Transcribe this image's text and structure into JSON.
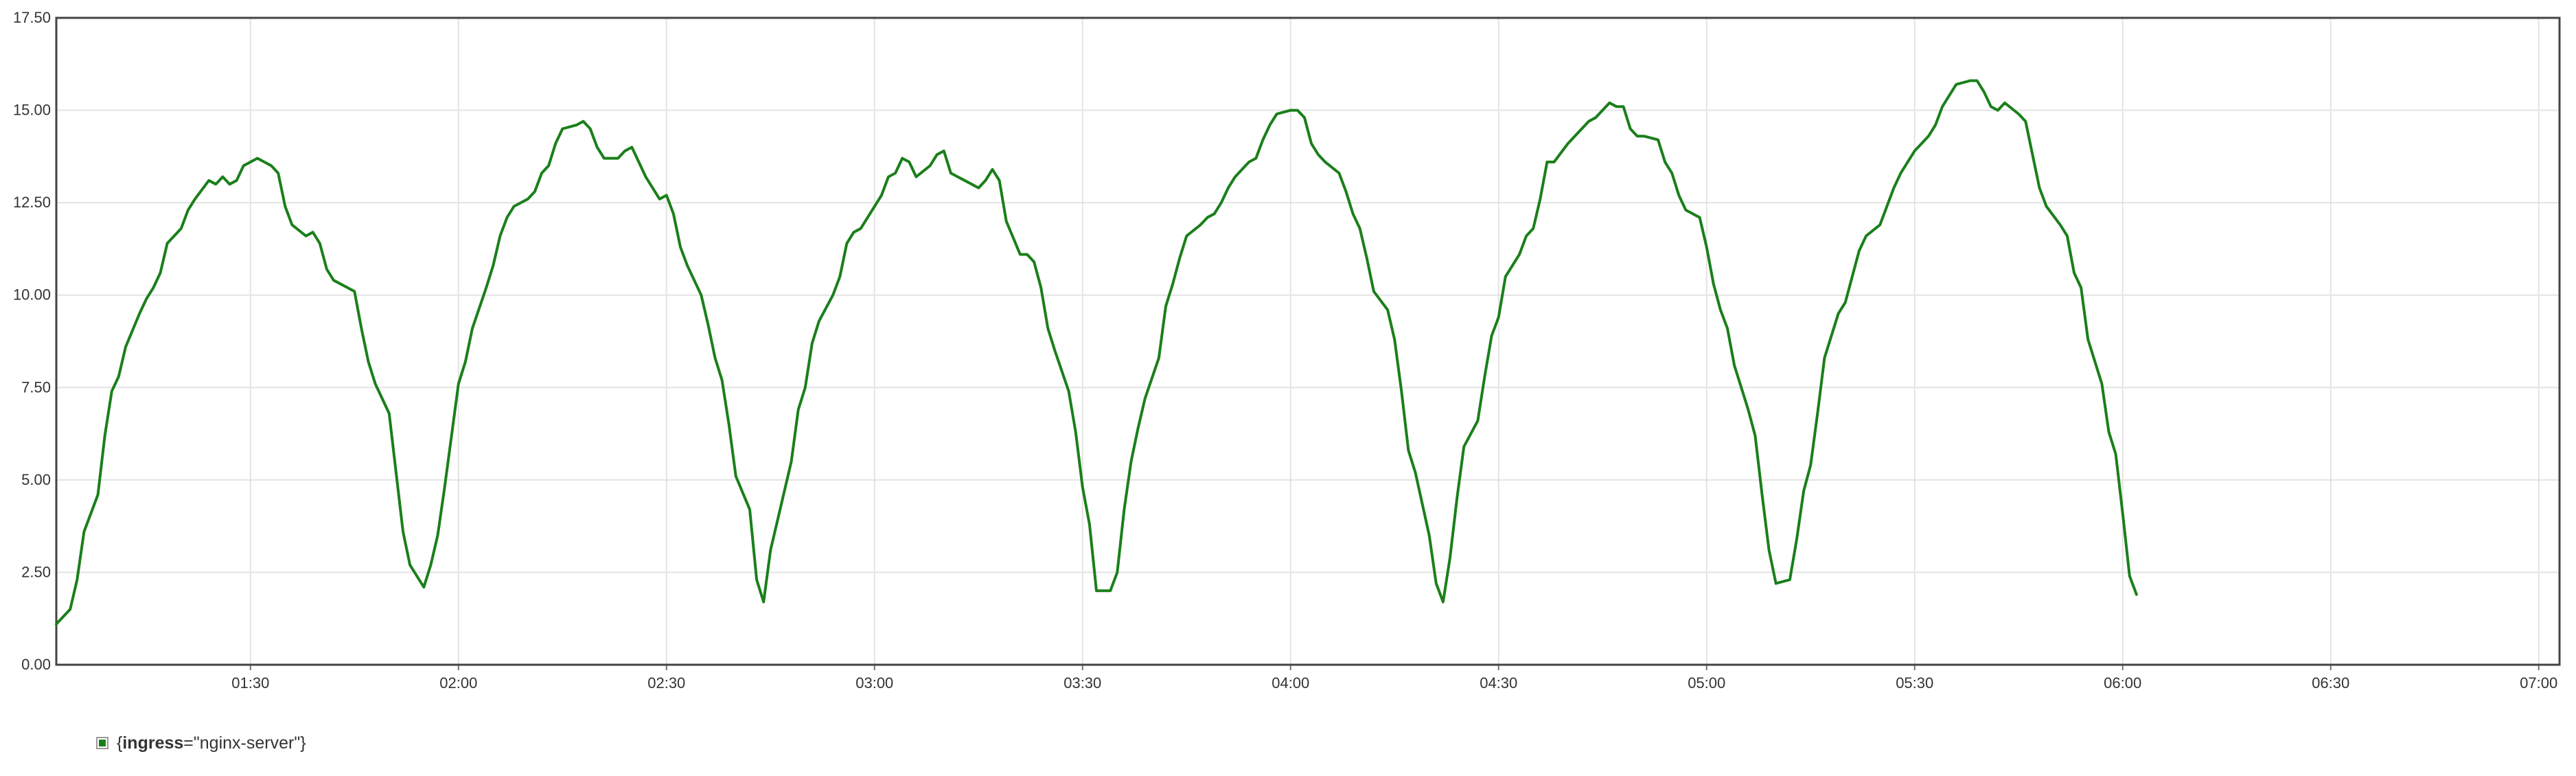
{
  "chart_data": {
    "type": "line",
    "title": "",
    "xlabel": "",
    "ylabel": "",
    "ylim": [
      0,
      17.5
    ],
    "xlim": [
      "01:02",
      "07:03"
    ],
    "grid": true,
    "legend_position": "bottom-left",
    "y_ticks": [
      "0.00",
      "2.50",
      "5.00",
      "7.50",
      "10.00",
      "12.50",
      "15.00",
      "17.50"
    ],
    "x_ticks": [
      "01:30",
      "02:00",
      "02:30",
      "03:00",
      "03:30",
      "04:00",
      "04:30",
      "05:00",
      "05:30",
      "06:00",
      "06:30",
      "07:00"
    ],
    "series": [
      {
        "name": "{ingress=\"nginx-server\"}",
        "color": "#1a7f1a",
        "points": [
          [
            "01:02",
            1.1
          ],
          [
            "01:04",
            1.5
          ],
          [
            "01:05",
            2.3
          ],
          [
            "01:06",
            3.6
          ],
          [
            "01:08",
            4.6
          ],
          [
            "01:09",
            6.2
          ],
          [
            "01:10",
            7.4
          ],
          [
            "01:11",
            7.8
          ],
          [
            "01:12",
            8.6
          ],
          [
            "01:14",
            9.5
          ],
          [
            "01:15",
            9.9
          ],
          [
            "01:16",
            10.2
          ],
          [
            "01:17",
            10.6
          ],
          [
            "01:18",
            11.4
          ],
          [
            "01:20",
            11.8
          ],
          [
            "01:21",
            12.3
          ],
          [
            "01:22",
            12.6
          ],
          [
            "01:24",
            13.1
          ],
          [
            "01:25",
            13.0
          ],
          [
            "01:26",
            13.2
          ],
          [
            "01:27",
            13.0
          ],
          [
            "01:28",
            13.1
          ],
          [
            "01:29",
            13.5
          ],
          [
            "01:31",
            13.7
          ],
          [
            "01:32",
            13.6
          ],
          [
            "01:33",
            13.5
          ],
          [
            "01:34",
            13.3
          ],
          [
            "01:35",
            12.4
          ],
          [
            "01:36",
            11.9
          ],
          [
            "01:38",
            11.6
          ],
          [
            "01:39",
            11.7
          ],
          [
            "01:40",
            11.4
          ],
          [
            "01:41",
            10.7
          ],
          [
            "01:42",
            10.4
          ],
          [
            "01:44",
            10.2
          ],
          [
            "01:45",
            10.1
          ],
          [
            "01:46",
            9.1
          ],
          [
            "01:47",
            8.2
          ],
          [
            "01:48",
            7.6
          ],
          [
            "01:50",
            6.8
          ],
          [
            "01:51",
            5.2
          ],
          [
            "01:52",
            3.6
          ],
          [
            "01:53",
            2.7
          ],
          [
            "01:55",
            2.1
          ],
          [
            "01:56",
            2.7
          ],
          [
            "01:57",
            3.5
          ],
          [
            "01:58",
            4.8
          ],
          [
            "01:59",
            6.2
          ],
          [
            "02:00",
            7.6
          ],
          [
            "02:01",
            8.2
          ],
          [
            "02:02",
            9.1
          ],
          [
            "02:04",
            10.2
          ],
          [
            "02:05",
            10.8
          ],
          [
            "02:06",
            11.6
          ],
          [
            "02:07",
            12.1
          ],
          [
            "02:08",
            12.4
          ],
          [
            "02:10",
            12.6
          ],
          [
            "02:11",
            12.8
          ],
          [
            "02:12",
            13.3
          ],
          [
            "02:13",
            13.5
          ],
          [
            "02:14",
            14.1
          ],
          [
            "02:15",
            14.5
          ],
          [
            "02:17",
            14.6
          ],
          [
            "02:18",
            14.7
          ],
          [
            "02:19",
            14.5
          ],
          [
            "02:20",
            14.0
          ],
          [
            "02:21",
            13.7
          ],
          [
            "02:23",
            13.7
          ],
          [
            "02:24",
            13.9
          ],
          [
            "02:25",
            14.0
          ],
          [
            "02:26",
            13.6
          ],
          [
            "02:27",
            13.2
          ],
          [
            "02:29",
            12.6
          ],
          [
            "02:30",
            12.7
          ],
          [
            "02:31",
            12.2
          ],
          [
            "02:32",
            11.3
          ],
          [
            "02:33",
            10.8
          ],
          [
            "02:35",
            10.0
          ],
          [
            "02:36",
            9.2
          ],
          [
            "02:37",
            8.3
          ],
          [
            "02:38",
            7.7
          ],
          [
            "02:39",
            6.5
          ],
          [
            "02:40",
            5.1
          ],
          [
            "02:42",
            4.2
          ],
          [
            "02:43",
            2.3
          ],
          [
            "02:44",
            1.7
          ],
          [
            "02:45",
            3.1
          ],
          [
            "02:46",
            3.9
          ],
          [
            "02:48",
            5.5
          ],
          [
            "02:49",
            6.9
          ],
          [
            "02:50",
            7.5
          ],
          [
            "02:51",
            8.7
          ],
          [
            "02:52",
            9.3
          ],
          [
            "02:54",
            10.0
          ],
          [
            "02:55",
            10.5
          ],
          [
            "02:56",
            11.4
          ],
          [
            "02:57",
            11.7
          ],
          [
            "02:58",
            11.8
          ],
          [
            "02:59",
            12.1
          ],
          [
            "03:01",
            12.7
          ],
          [
            "03:02",
            13.2
          ],
          [
            "03:03",
            13.3
          ],
          [
            "03:04",
            13.7
          ],
          [
            "03:05",
            13.6
          ],
          [
            "03:06",
            13.2
          ],
          [
            "03:08",
            13.5
          ],
          [
            "03:09",
            13.8
          ],
          [
            "03:10",
            13.9
          ],
          [
            "03:11",
            13.3
          ],
          [
            "03:12",
            13.2
          ],
          [
            "03:14",
            13.0
          ],
          [
            "03:15",
            12.9
          ],
          [
            "03:16",
            13.1
          ],
          [
            "03:17",
            13.4
          ],
          [
            "03:18",
            13.1
          ],
          [
            "03:19",
            12.0
          ],
          [
            "03:21",
            11.1
          ],
          [
            "03:22",
            11.1
          ],
          [
            "03:23",
            10.9
          ],
          [
            "03:24",
            10.2
          ],
          [
            "03:25",
            9.1
          ],
          [
            "03:26",
            8.5
          ],
          [
            "03:28",
            7.4
          ],
          [
            "03:29",
            6.3
          ],
          [
            "03:30",
            4.8
          ],
          [
            "03:31",
            3.8
          ],
          [
            "03:32",
            2.0
          ],
          [
            "03:34",
            2.0
          ],
          [
            "03:35",
            2.5
          ],
          [
            "03:36",
            4.2
          ],
          [
            "03:37",
            5.5
          ],
          [
            "03:38",
            6.4
          ],
          [
            "03:39",
            7.2
          ],
          [
            "03:41",
            8.3
          ],
          [
            "03:42",
            9.7
          ],
          [
            "03:43",
            10.3
          ],
          [
            "03:44",
            11.0
          ],
          [
            "03:45",
            11.6
          ],
          [
            "03:47",
            11.9
          ],
          [
            "03:48",
            12.1
          ],
          [
            "03:49",
            12.2
          ],
          [
            "03:50",
            12.5
          ],
          [
            "03:51",
            12.9
          ],
          [
            "03:52",
            13.2
          ],
          [
            "03:54",
            13.6
          ],
          [
            "03:55",
            13.7
          ],
          [
            "03:56",
            14.2
          ],
          [
            "03:57",
            14.6
          ],
          [
            "03:58",
            14.9
          ],
          [
            "04:00",
            15.0
          ],
          [
            "04:01",
            15.0
          ],
          [
            "04:02",
            14.8
          ],
          [
            "04:03",
            14.1
          ],
          [
            "04:04",
            13.8
          ],
          [
            "04:05",
            13.6
          ],
          [
            "04:07",
            13.3
          ],
          [
            "04:08",
            12.8
          ],
          [
            "04:09",
            12.2
          ],
          [
            "04:10",
            11.8
          ],
          [
            "04:11",
            11.0
          ],
          [
            "04:12",
            10.1
          ],
          [
            "04:14",
            9.6
          ],
          [
            "04:15",
            8.8
          ],
          [
            "04:16",
            7.4
          ],
          [
            "04:17",
            5.8
          ],
          [
            "04:18",
            5.2
          ],
          [
            "04:20",
            3.5
          ],
          [
            "04:21",
            2.2
          ],
          [
            "04:22",
            1.7
          ],
          [
            "04:23",
            2.9
          ],
          [
            "04:24",
            4.5
          ],
          [
            "04:25",
            5.9
          ],
          [
            "04:27",
            6.6
          ],
          [
            "04:28",
            7.8
          ],
          [
            "04:29",
            8.9
          ],
          [
            "04:30",
            9.4
          ],
          [
            "04:31",
            10.5
          ],
          [
            "04:33",
            11.1
          ],
          [
            "04:34",
            11.6
          ],
          [
            "04:35",
            11.8
          ],
          [
            "04:36",
            12.6
          ],
          [
            "04:37",
            13.6
          ],
          [
            "04:38",
            13.6
          ],
          [
            "04:40",
            14.1
          ],
          [
            "04:41",
            14.3
          ],
          [
            "04:42",
            14.5
          ],
          [
            "04:43",
            14.7
          ],
          [
            "04:44",
            14.8
          ],
          [
            "04:46",
            15.2
          ],
          [
            "04:47",
            15.1
          ],
          [
            "04:48",
            15.1
          ],
          [
            "04:49",
            14.5
          ],
          [
            "04:50",
            14.3
          ],
          [
            "04:51",
            14.3
          ],
          [
            "04:53",
            14.2
          ],
          [
            "04:54",
            13.6
          ],
          [
            "04:55",
            13.3
          ],
          [
            "04:56",
            12.7
          ],
          [
            "04:57",
            12.3
          ],
          [
            "04:59",
            12.1
          ],
          [
            "05:00",
            11.3
          ],
          [
            "05:01",
            10.3
          ],
          [
            "05:02",
            9.6
          ],
          [
            "05:03",
            9.1
          ],
          [
            "05:04",
            8.1
          ],
          [
            "05:06",
            6.9
          ],
          [
            "05:07",
            6.2
          ],
          [
            "05:08",
            4.6
          ],
          [
            "05:09",
            3.1
          ],
          [
            "05:10",
            2.2
          ],
          [
            "05:12",
            2.3
          ],
          [
            "05:13",
            3.4
          ],
          [
            "05:14",
            4.7
          ],
          [
            "05:15",
            5.4
          ],
          [
            "05:16",
            6.8
          ],
          [
            "05:17",
            8.3
          ],
          [
            "05:19",
            9.5
          ],
          [
            "05:20",
            9.8
          ],
          [
            "05:21",
            10.5
          ],
          [
            "05:22",
            11.2
          ],
          [
            "05:23",
            11.6
          ],
          [
            "05:25",
            11.9
          ],
          [
            "05:26",
            12.4
          ],
          [
            "05:27",
            12.9
          ],
          [
            "05:28",
            13.3
          ],
          [
            "05:29",
            13.6
          ],
          [
            "05:30",
            13.9
          ],
          [
            "05:32",
            14.3
          ],
          [
            "05:33",
            14.6
          ],
          [
            "05:34",
            15.1
          ],
          [
            "05:35",
            15.4
          ],
          [
            "05:36",
            15.7
          ],
          [
            "05:38",
            15.8
          ],
          [
            "05:39",
            15.8
          ],
          [
            "05:40",
            15.5
          ],
          [
            "05:41",
            15.1
          ],
          [
            "05:42",
            15.0
          ],
          [
            "05:43",
            15.2
          ],
          [
            "05:45",
            14.9
          ],
          [
            "05:46",
            14.7
          ],
          [
            "05:47",
            13.8
          ],
          [
            "05:48",
            12.9
          ],
          [
            "05:49",
            12.4
          ],
          [
            "05:51",
            11.9
          ],
          [
            "05:52",
            11.6
          ],
          [
            "05:53",
            10.6
          ],
          [
            "05:54",
            10.2
          ],
          [
            "05:55",
            8.8
          ],
          [
            "05:57",
            7.6
          ],
          [
            "05:58",
            6.3
          ],
          [
            "05:59",
            5.7
          ],
          [
            "06:00",
            4.1
          ],
          [
            "06:01",
            2.4
          ],
          [
            "06:02",
            1.9
          ]
        ]
      }
    ]
  },
  "legend": {
    "label_key": "ingress",
    "label_value": "=\"nginx-server\"}",
    "label_prefix": "{"
  }
}
